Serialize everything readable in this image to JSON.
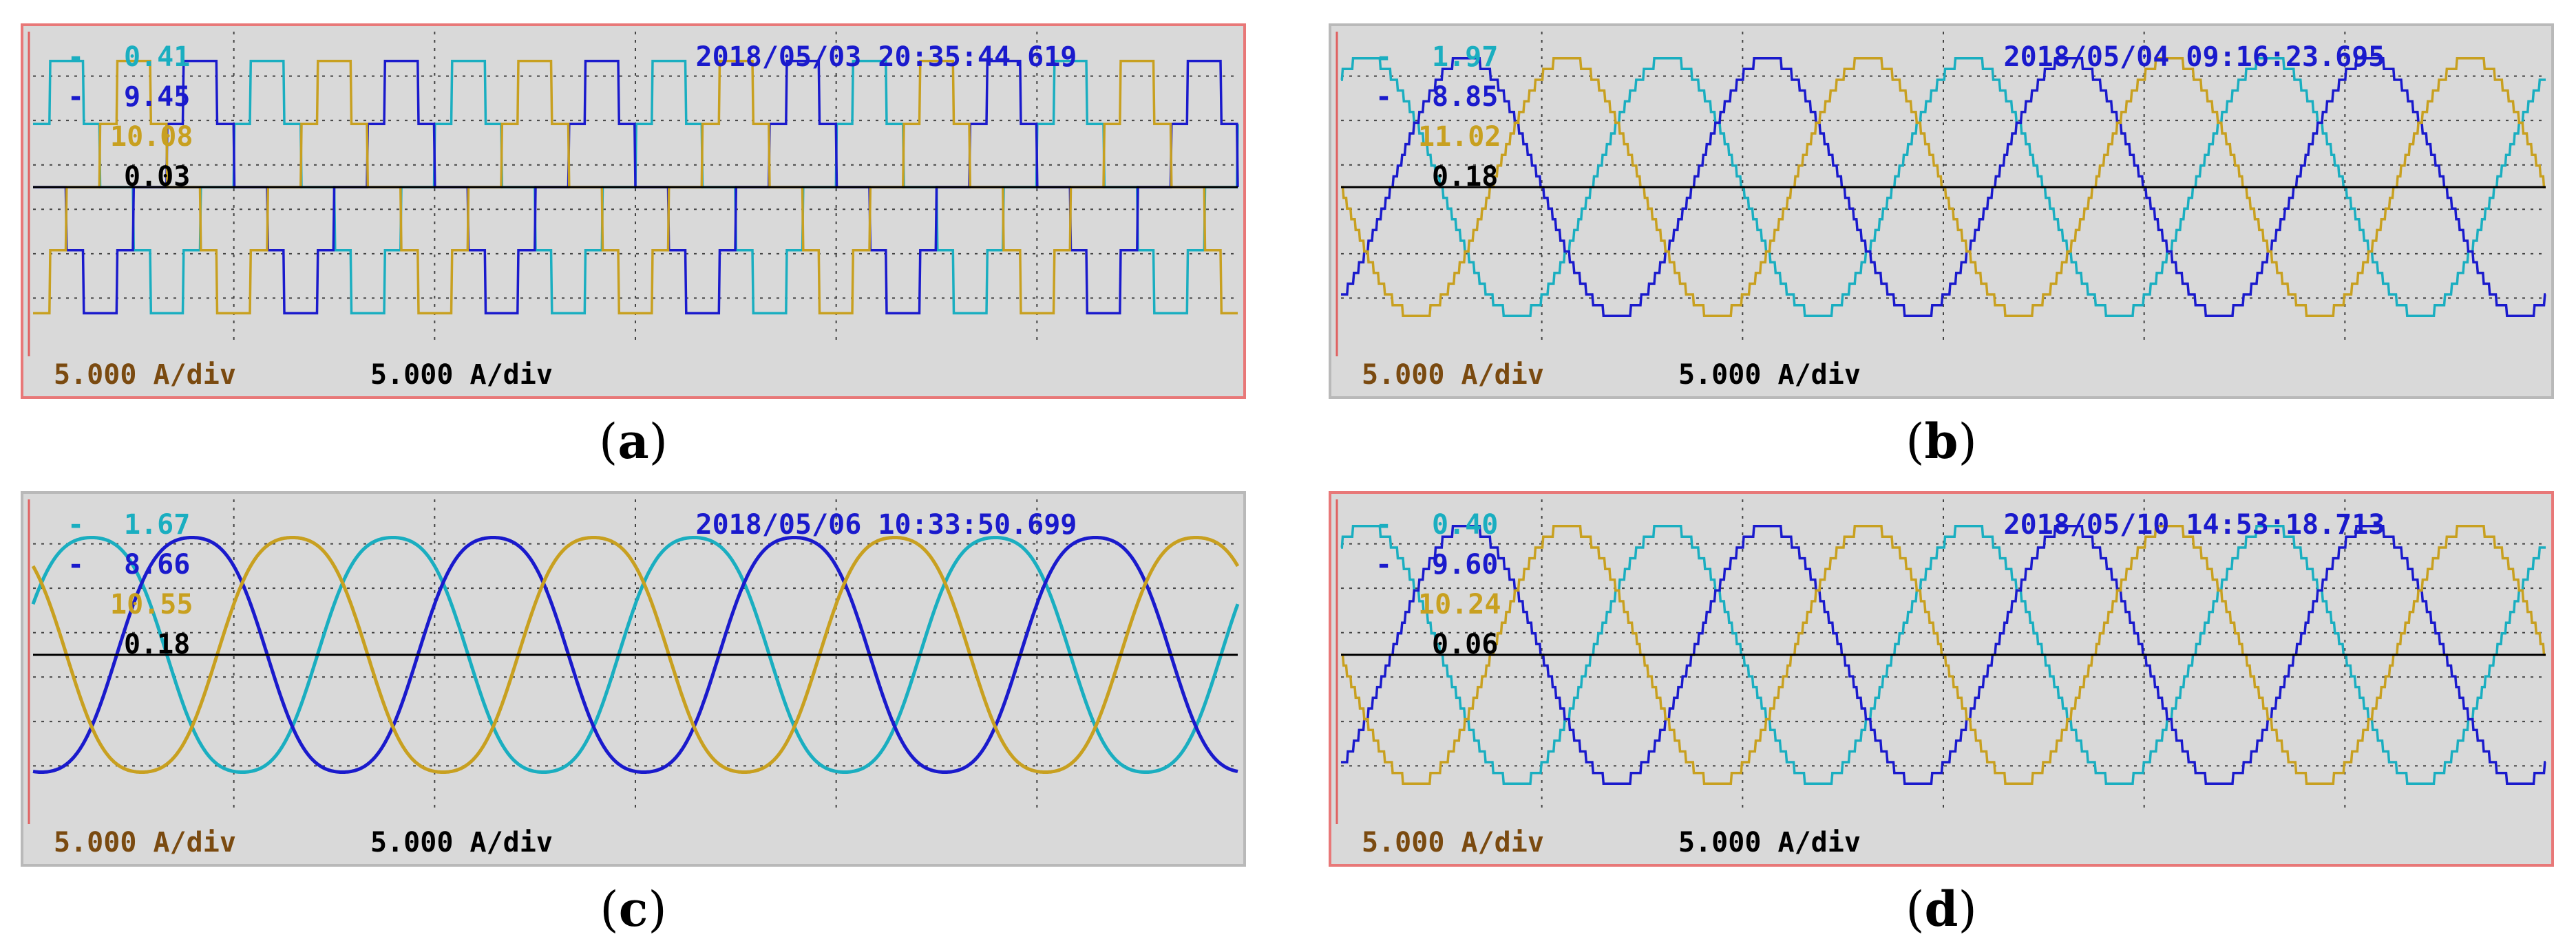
{
  "colors": {
    "cyan": "#1aaec0",
    "blue": "#1a1acc",
    "gold": "#c8a020",
    "black": "#000000",
    "scale_brown": "#7a4a10",
    "red_border": "#e87878"
  },
  "chart_data": [
    {
      "type": "line",
      "panel": "a",
      "caption_label": "a",
      "timestamp": "2018/05/03 20:35:44.619",
      "readings": [
        {
          "marker": "-",
          "value": "0.41",
          "color": "cyan"
        },
        {
          "marker": "-",
          "value": "9.45",
          "color": "blue"
        },
        {
          "marker": "",
          "value": "10.08",
          "color": "gold"
        },
        {
          "marker": "",
          "value": "0.03",
          "color": "black"
        }
      ],
      "scales": [
        "5.000 A/div",
        "5.000 A/div"
      ],
      "grid": true,
      "ylim": [
        -17.5,
        17.5
      ],
      "y_divisions": 7,
      "x_divisions": 6,
      "cycles": 6,
      "amplitude": 14.2,
      "series": [
        {
          "color": "cyan",
          "shape": "square",
          "phase_deg": 30
        },
        {
          "color": "blue",
          "shape": "square",
          "phase_deg": 150
        },
        {
          "color": "gold",
          "shape": "square",
          "phase_deg": 270
        },
        {
          "color": "black",
          "shape": "flat",
          "phase_deg": 0
        }
      ]
    },
    {
      "type": "line",
      "panel": "b",
      "caption_label": "b",
      "timestamp": "2018/05/04 09:16:23.695",
      "readings": [
        {
          "marker": "-",
          "value": "1.97",
          "color": "cyan"
        },
        {
          "marker": "-",
          "value": "8.85",
          "color": "blue"
        },
        {
          "marker": "",
          "value": "11.02",
          "color": "gold"
        },
        {
          "marker": "",
          "value": "0.18",
          "color": "black"
        }
      ],
      "scales": [
        "5.000 A/div",
        "5.000 A/div"
      ],
      "grid": true,
      "ylim": [
        -17.5,
        17.5
      ],
      "y_divisions": 7,
      "x_divisions": 6,
      "cycles": 4,
      "amplitude": 14.5,
      "series": [
        {
          "color": "cyan",
          "shape": "stepsine",
          "phase_deg": 60
        },
        {
          "color": "blue",
          "shape": "stepsine",
          "phase_deg": 300
        },
        {
          "color": "gold",
          "shape": "stepsine",
          "phase_deg": 180
        },
        {
          "color": "black",
          "shape": "flat",
          "phase_deg": 0
        }
      ]
    },
    {
      "type": "line",
      "panel": "c",
      "caption_label": "c",
      "timestamp": "2018/05/06 10:33:50.699",
      "readings": [
        {
          "marker": "-",
          "value": "1.67",
          "color": "cyan"
        },
        {
          "marker": "-",
          "value": "8.66",
          "color": "blue"
        },
        {
          "marker": "",
          "value": "10.55",
          "color": "gold"
        },
        {
          "marker": "",
          "value": "0.18",
          "color": "black"
        }
      ],
      "scales": [
        "5.000 A/div",
        "5.000 A/div"
      ],
      "grid": true,
      "ylim": [
        -17.5,
        17.5
      ],
      "y_divisions": 7,
      "x_divisions": 6,
      "cycles": 4,
      "amplitude": 14.2,
      "series": [
        {
          "color": "cyan",
          "shape": "smoothsine",
          "phase_deg": 20
        },
        {
          "color": "blue",
          "shape": "smoothsine",
          "phase_deg": 260
        },
        {
          "color": "gold",
          "shape": "smoothsine",
          "phase_deg": 140
        },
        {
          "color": "black",
          "shape": "flat",
          "phase_deg": 0
        }
      ]
    },
    {
      "type": "line",
      "panel": "d",
      "caption_label": "d",
      "timestamp": "2018/05/10 14:53:18.713",
      "readings": [
        {
          "marker": "-",
          "value": "0.40",
          "color": "cyan"
        },
        {
          "marker": "-",
          "value": "9.60",
          "color": "blue"
        },
        {
          "marker": "",
          "value": "10.24",
          "color": "gold"
        },
        {
          "marker": "",
          "value": "0.06",
          "color": "black"
        }
      ],
      "scales": [
        "5.000 A/div",
        "5.000 A/div"
      ],
      "grid": true,
      "ylim": [
        -17.5,
        17.5
      ],
      "y_divisions": 7,
      "x_divisions": 6,
      "cycles": 4,
      "amplitude": 14.5,
      "series": [
        {
          "color": "cyan",
          "shape": "stepsine",
          "phase_deg": 60
        },
        {
          "color": "blue",
          "shape": "stepsine",
          "phase_deg": 300
        },
        {
          "color": "gold",
          "shape": "stepsine",
          "phase_deg": 180
        },
        {
          "color": "black",
          "shape": "flat",
          "phase_deg": 0
        }
      ]
    }
  ]
}
